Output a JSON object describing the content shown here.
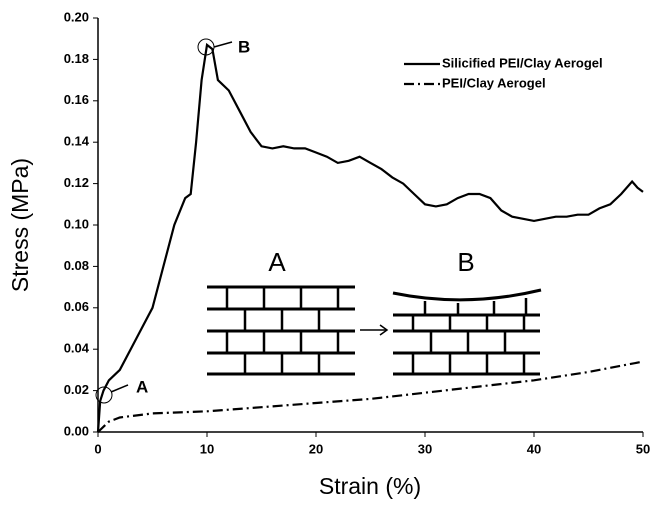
{
  "chart_data": {
    "type": "line",
    "xlabel": "Strain (%)",
    "ylabel": "Stress (MPa)",
    "xlim": [
      0,
      50
    ],
    "xticks": [
      0,
      10,
      20,
      30,
      40,
      50
    ],
    "ylim": [
      0,
      0.2
    ],
    "yticks": [
      {
        "value": 0,
        "label": "0.00"
      },
      {
        "value": 0.02,
        "label": "0.02"
      },
      {
        "value": 0.04,
        "label": "0.04"
      },
      {
        "value": 0.06,
        "label": "0.06"
      },
      {
        "value": 0.08,
        "label": "0.08"
      },
      {
        "value": 0.1,
        "label": "0.10"
      },
      {
        "value": 0.12,
        "label": "0.12"
      },
      {
        "value": 0.14,
        "label": "0.14"
      },
      {
        "value": 0.16,
        "label": "0.16"
      },
      {
        "value": 0.18,
        "label": "0.18"
      },
      {
        "value": 0.2,
        "label": "0.20"
      }
    ],
    "legend": "top-right",
    "series": [
      {
        "name": "Silicified PEI/Clay Aerogel",
        "color": "#000000",
        "dash": "solid",
        "x": [
          0,
          0.2,
          0.5,
          1,
          2,
          3,
          4,
          5,
          6,
          7,
          8,
          8.5,
          9,
          9.5,
          10,
          10.5,
          11,
          12,
          13,
          14,
          15,
          16,
          17,
          18,
          19,
          20,
          21,
          22,
          23,
          24,
          25,
          26,
          27,
          28,
          29,
          30,
          31,
          32,
          33,
          34,
          35,
          36,
          37,
          38,
          39,
          40,
          41,
          42,
          43,
          44,
          45,
          46,
          47,
          48,
          49,
          49.5,
          50
        ],
        "values": [
          0,
          0.015,
          0.02,
          0.025,
          0.03,
          0.04,
          0.05,
          0.06,
          0.08,
          0.1,
          0.113,
          0.115,
          0.14,
          0.17,
          0.187,
          0.185,
          0.17,
          0.165,
          0.155,
          0.145,
          0.138,
          0.137,
          0.138,
          0.137,
          0.137,
          0.135,
          0.133,
          0.13,
          0.131,
          0.133,
          0.13,
          0.127,
          0.123,
          0.12,
          0.115,
          0.11,
          0.109,
          0.11,
          0.113,
          0.115,
          0.115,
          0.113,
          0.107,
          0.104,
          0.103,
          0.102,
          0.103,
          0.104,
          0.104,
          0.105,
          0.105,
          0.108,
          0.11,
          0.115,
          0.121,
          0.118,
          0.116
        ]
      },
      {
        "name": "PEI/Clay Aerogel",
        "color": "#000000",
        "dash": "dashdot",
        "x": [
          0,
          1,
          2,
          5,
          10,
          15,
          20,
          25,
          30,
          35,
          40,
          45,
          50
        ],
        "values": [
          0,
          0.005,
          0.007,
          0.009,
          0.01,
          0.012,
          0.014,
          0.016,
          0.019,
          0.022,
          0.025,
          0.029,
          0.034
        ]
      }
    ],
    "annotations": [
      "A",
      "B"
    ],
    "inset_labels": [
      "A",
      "B"
    ]
  }
}
